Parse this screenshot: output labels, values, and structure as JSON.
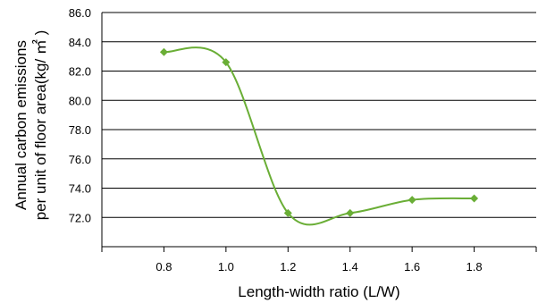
{
  "chart_data": {
    "type": "line",
    "title": "",
    "xlabel": "Length-width ratio  (L/W)",
    "ylabel_line1": "Annual carbon emissions",
    "ylabel_line2": "per unit of floor area(kg/ ㎡ )",
    "ylim": [
      70.0,
      86.0
    ],
    "xlim": [
      0.6,
      2.0
    ],
    "y_ticks": [
      "72.0",
      "74.0",
      "76.0",
      "78.0",
      "80.0",
      "82.0",
      "84.0",
      "86.0"
    ],
    "x_ticks": [
      "0.8",
      "1.0",
      "1.2",
      "1.4",
      "1.6",
      "1.8"
    ],
    "grid": true,
    "line_color": "#6aae36",
    "series": [
      {
        "x": [
          0.8,
          1.0,
          1.2,
          1.4,
          1.6,
          1.8
        ],
        "values": [
          83.3,
          82.6,
          72.3,
          72.3,
          73.2,
          73.3
        ]
      }
    ]
  }
}
